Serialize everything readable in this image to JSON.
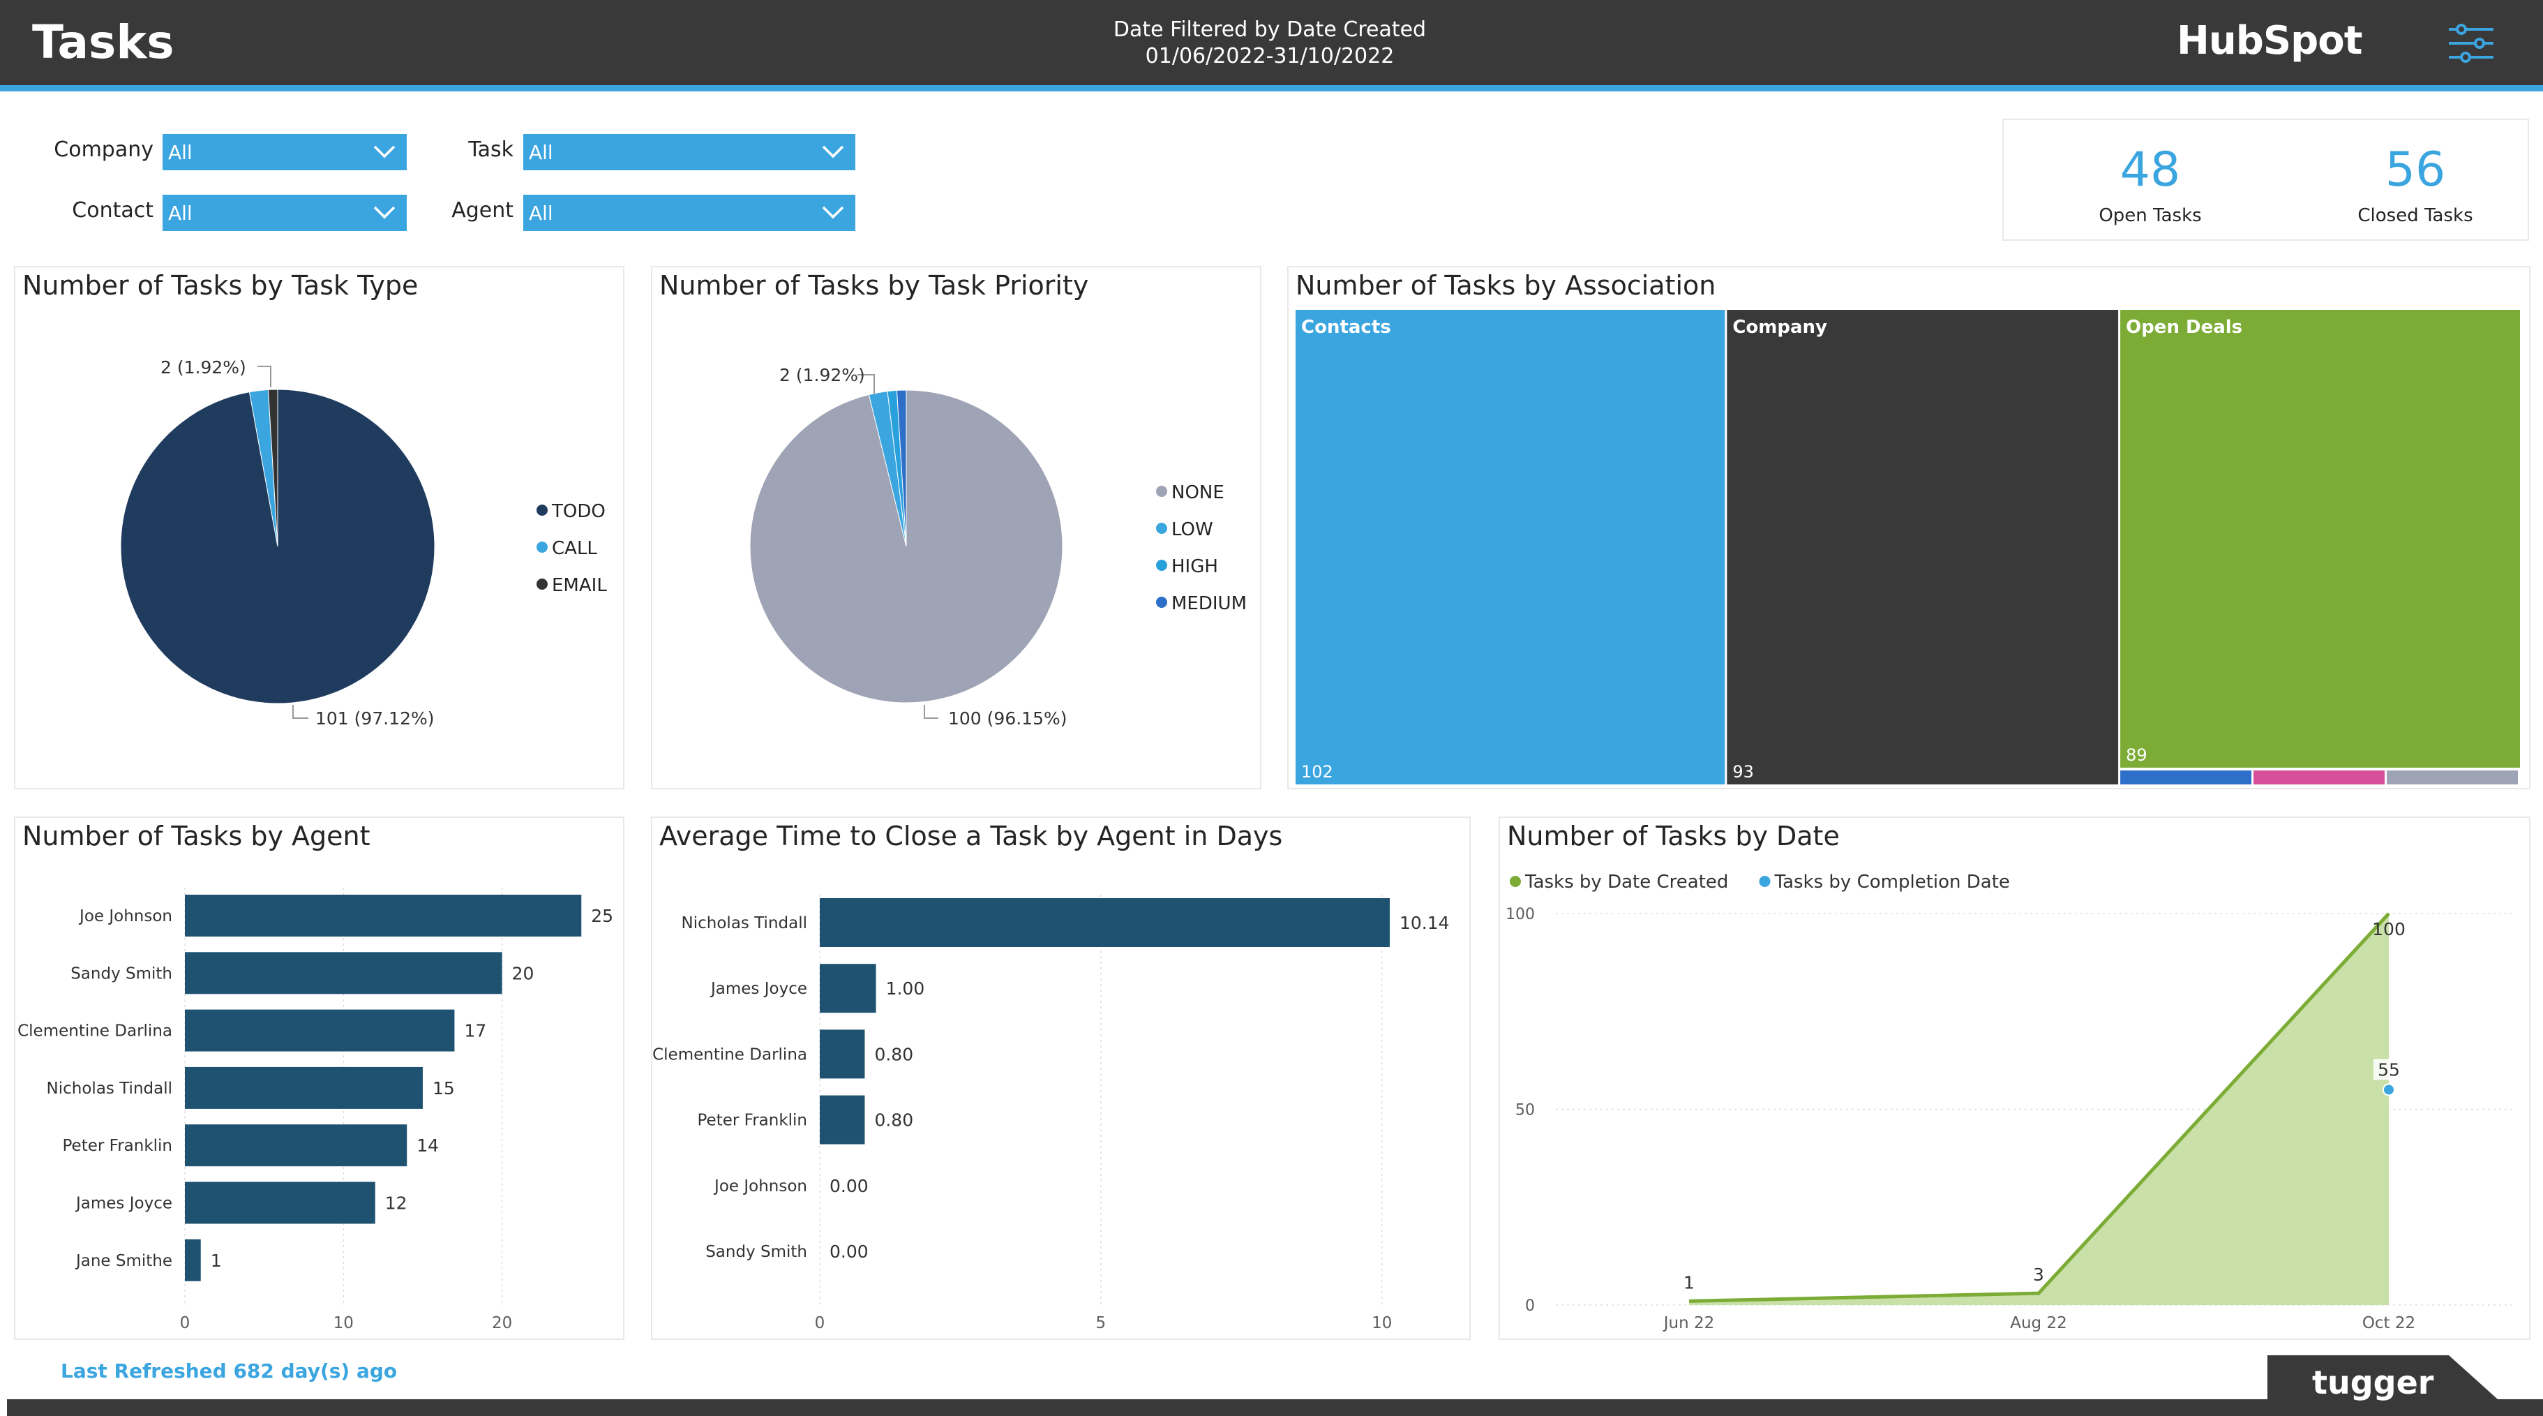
{
  "header": {
    "title": "Tasks",
    "filter_line1": "Date Filtered by Date Created",
    "filter_line2": "01/06/2022-31/10/2022",
    "logo_text": "HubSpot",
    "filter_icon": "sliders-icon"
  },
  "slicers": {
    "company": {
      "label": "Company",
      "value": "All"
    },
    "task": {
      "label": "Task",
      "value": "All"
    },
    "contact": {
      "label": "Contact",
      "value": "All"
    },
    "agent": {
      "label": "Agent",
      "value": "All"
    }
  },
  "kpis": {
    "open": {
      "value": "48",
      "label": "Open Tasks"
    },
    "closed": {
      "value": "56",
      "label": "Closed Tasks"
    }
  },
  "footer": {
    "refresh": "Last Refreshed 682 day(s) ago",
    "brand": "tugger"
  },
  "colors": {
    "accent": "#3ba5e0",
    "dark": "#3a3939",
    "navy": "#1f3b5e",
    "bar": "#1e5270",
    "green": "#7cac36",
    "grey": "#9ea3b5"
  },
  "chart_data": [
    {
      "id": "type",
      "type": "pie",
      "title": "Number of Tasks by Task Type",
      "slices": [
        {
          "name": "TODO",
          "value": 101,
          "color": "#1f3b5e"
        },
        {
          "name": "CALL",
          "value": 2,
          "color": "#3ba5e0"
        },
        {
          "name": "EMAIL",
          "value": 1,
          "color": "#333333"
        }
      ],
      "labels": [
        "101 (97.12%)",
        "2 (1.92%)"
      ],
      "legend": "right"
    },
    {
      "id": "priority",
      "type": "pie",
      "title": "Number of Tasks by Task Priority",
      "slices": [
        {
          "name": "NONE",
          "value": 100,
          "color": "#9ea3b5"
        },
        {
          "name": "LOW",
          "value": 2,
          "color": "#3ba5e0"
        },
        {
          "name": "HIGH",
          "value": 1,
          "color": "#28a0dc"
        },
        {
          "name": "MEDIUM",
          "value": 1,
          "color": "#2e6fc9"
        }
      ],
      "labels": [
        "100 (96.15%)",
        "2 (1.92%)"
      ],
      "legend": "right"
    },
    {
      "id": "association",
      "type": "treemap",
      "title": "Number of Tasks by Association",
      "items": [
        {
          "name": "Contacts",
          "value": 102,
          "color": "#3ba5e0"
        },
        {
          "name": "Company",
          "value": 93,
          "color": "#3a3939"
        },
        {
          "name": "Open Deals",
          "value": 89,
          "color": "#7cac36"
        }
      ],
      "minor_colors": [
        "#2e6fc9",
        "#d64f98",
        "#9ea3b5"
      ]
    },
    {
      "id": "agent",
      "type": "bar",
      "orientation": "horizontal",
      "title": "Number of Tasks by Agent",
      "categories": [
        "Joe Johnson",
        "Sandy Smith",
        "Clementine Darlina",
        "Nicholas Tindall",
        "Peter Franklin",
        "James Joyce",
        "Jane Smithe"
      ],
      "values": [
        25,
        20,
        17,
        15,
        14,
        12,
        1
      ],
      "value_labels": [
        "25",
        "20",
        "17",
        "15",
        "14",
        "12",
        "1"
      ],
      "xticks": [
        "0",
        "10",
        "20"
      ],
      "xlim": [
        0,
        26
      ]
    },
    {
      "id": "avgclose",
      "type": "bar",
      "orientation": "horizontal",
      "title": "Average Time to Close a Task by Agent in Days",
      "categories": [
        "Nicholas Tindall",
        "James Joyce",
        "Clementine Darlina",
        "Peter Franklin",
        "Joe Johnson",
        "Sandy Smith"
      ],
      "values": [
        10.14,
        1.0,
        0.8,
        0.8,
        0.0,
        0.0
      ],
      "value_labels": [
        "10.14",
        "1.00",
        "0.80",
        "0.80",
        "0.00",
        "0.00"
      ],
      "xticks": [
        "0",
        "5",
        "10"
      ],
      "xlim": [
        0,
        10.5
      ]
    },
    {
      "id": "bydate",
      "type": "area",
      "title": "Number of Tasks by Date",
      "categories": [
        "Jun 22",
        "Aug 22",
        "Oct 22"
      ],
      "series": [
        {
          "name": "Tasks by Date Created",
          "values": [
            1,
            3,
            100
          ],
          "labels": [
            "1",
            "3",
            "100"
          ],
          "color": "#7cac36"
        },
        {
          "name": "Tasks by Completion Date",
          "values": [
            null,
            null,
            55
          ],
          "labels": [
            "",
            "",
            "55"
          ],
          "color": "#3ba5e0"
        }
      ],
      "yticks": [
        "0",
        "50",
        "100"
      ],
      "ylim": [
        0,
        100
      ],
      "legend": "top-left"
    }
  ]
}
